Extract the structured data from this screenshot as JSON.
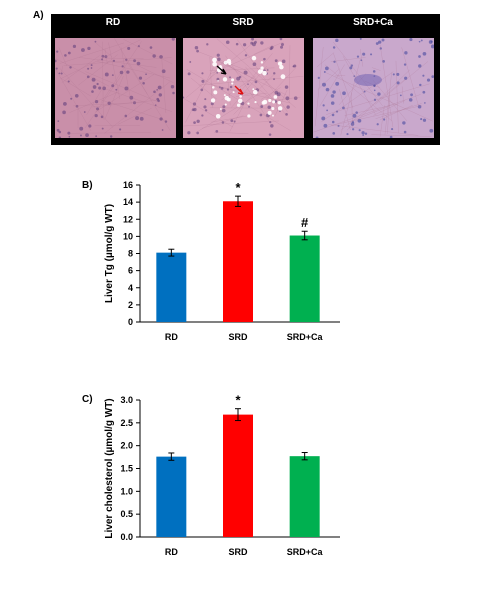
{
  "panels": {
    "a_letter": "A)",
    "b_letter": "B)",
    "c_letter": "C)"
  },
  "histology": {
    "titles": [
      "RD",
      "SRD",
      "SRD+Ca"
    ],
    "tissue_colors": [
      "#c98fa9",
      "#d9a3bb",
      "#c9a8cc"
    ],
    "arrow_colors": [
      "#000000",
      "#e01010"
    ]
  },
  "chart_data": [
    {
      "type": "bar",
      "categories": [
        "RD",
        "SRD",
        "SRD+Ca"
      ],
      "values": [
        8.1,
        14.1,
        10.1
      ],
      "errors": [
        0.4,
        0.6,
        0.5
      ],
      "significance": [
        "",
        "*",
        "#"
      ],
      "colors": [
        "#0070c0",
        "#ff0000",
        "#00b050"
      ],
      "ylabel": "Liver Tg (µmol/g WT)",
      "xlabel": "",
      "ylim": [
        0,
        16
      ],
      "yticks": [
        "0",
        "2",
        "4",
        "6",
        "8",
        "10",
        "12",
        "14",
        "16"
      ]
    },
    {
      "type": "bar",
      "categories": [
        "RD",
        "SRD",
        "SRD+Ca"
      ],
      "values": [
        1.76,
        2.68,
        1.77
      ],
      "errors": [
        0.08,
        0.13,
        0.08
      ],
      "significance": [
        "",
        "*",
        ""
      ],
      "colors": [
        "#0070c0",
        "#ff0000",
        "#00b050"
      ],
      "ylabel": "Liver cholesterol (µmol/g WT)",
      "xlabel": "",
      "ylim": [
        0,
        3.0
      ],
      "yticks": [
        "0.0",
        "0.5",
        "1.0",
        "1.5",
        "2.0",
        "2.5",
        "3.0"
      ]
    }
  ]
}
